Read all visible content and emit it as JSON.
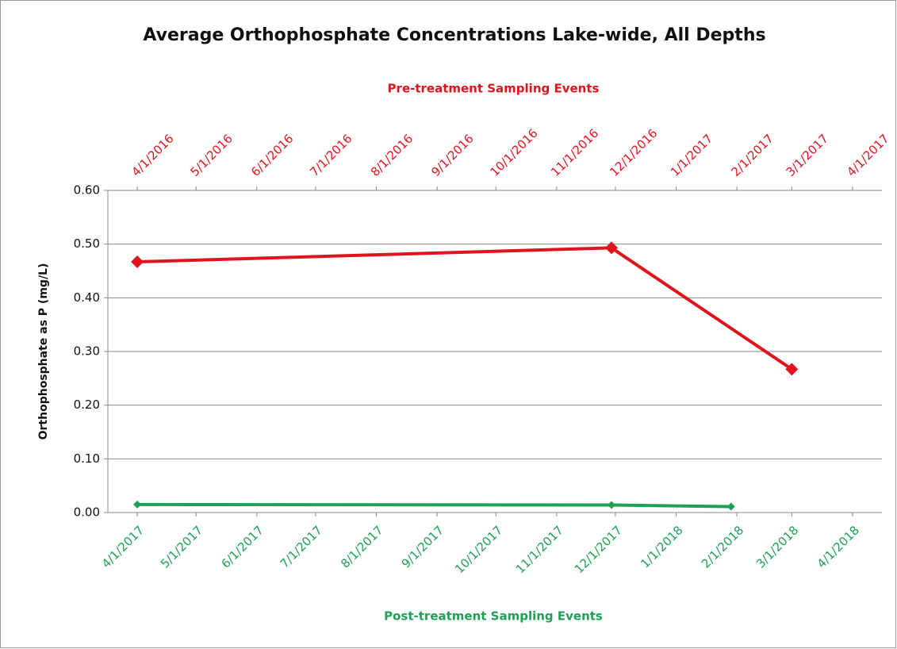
{
  "chart_data": {
    "type": "line",
    "title": "Average Orthophosphate Concentrations Lake-wide, All Depths",
    "x_label": "Pre-treatment Sampling Events",
    "x2_label": "Post-treatment Sampling Events",
    "y_label": "Orthophosphate as P (mg/L)",
    "xlim": [
      "2016-03-17",
      "2017-04-16"
    ],
    "xticks": [
      {
        "value": "2016-04-01",
        "label": "4/1/2016"
      },
      {
        "value": "2016-05-01",
        "label": "5/1/2016"
      },
      {
        "value": "2016-06-01",
        "label": "6/1/2016"
      },
      {
        "value": "2016-07-01",
        "label": "7/1/2016"
      },
      {
        "value": "2016-08-01",
        "label": "8/1/2016"
      },
      {
        "value": "2016-09-01",
        "label": "9/1/2016"
      },
      {
        "value": "2016-10-01",
        "label": "10/1/2016"
      },
      {
        "value": "2016-11-01",
        "label": "11/1/2016"
      },
      {
        "value": "2016-12-01",
        "label": "12/1/2016"
      },
      {
        "value": "2017-01-01",
        "label": "1/1/2017"
      },
      {
        "value": "2017-02-01",
        "label": "2/1/2017"
      },
      {
        "value": "2017-03-01",
        "label": "3/1/2017"
      },
      {
        "value": "2017-04-01",
        "label": "4/1/2017"
      }
    ],
    "x2lim": [
      "2017-03-17",
      "2018-04-16"
    ],
    "x2ticks": [
      {
        "value": "2017-04-01",
        "label": "4/1/2017"
      },
      {
        "value": "2017-05-01",
        "label": "5/1/2017"
      },
      {
        "value": "2017-06-01",
        "label": "6/1/2017"
      },
      {
        "value": "2017-07-01",
        "label": "7/1/2017"
      },
      {
        "value": "2017-08-01",
        "label": "8/1/2017"
      },
      {
        "value": "2017-09-01",
        "label": "9/1/2017"
      },
      {
        "value": "2017-10-01",
        "label": "10/1/2017"
      },
      {
        "value": "2017-11-01",
        "label": "11/1/2017"
      },
      {
        "value": "2017-12-01",
        "label": "12/1/2017"
      },
      {
        "value": "2018-01-01",
        "label": "1/1/2018"
      },
      {
        "value": "2018-02-01",
        "label": "2/1/2018"
      },
      {
        "value": "2018-03-01",
        "label": "3/1/2018"
      },
      {
        "value": "2018-04-01",
        "label": "4/1/2018"
      }
    ],
    "ylim": [
      0,
      0.6
    ],
    "yticks": [
      {
        "value": 0,
        "label": "0.00"
      },
      {
        "value": 0.1,
        "label": "0.10"
      },
      {
        "value": 0.2,
        "label": "0.20"
      },
      {
        "value": 0.3,
        "label": "0.30"
      },
      {
        "value": 0.4,
        "label": "0.40"
      },
      {
        "value": 0.5,
        "label": "0.50"
      },
      {
        "value": 0.6,
        "label": "0.60"
      }
    ],
    "grid": true,
    "series": [
      {
        "color": "#e0141e",
        "axis": "x",
        "x": [
          "2016-04-01",
          "2016-11-29",
          "2017-03-01"
        ],
        "values": [
          0.467,
          0.493,
          0.267
        ]
      },
      {
        "color": "#1fa055",
        "axis": "x2",
        "x": [
          "2017-04-01",
          "2017-11-29",
          "2018-01-29"
        ],
        "values": [
          0.015,
          0.014,
          0.011
        ]
      }
    ]
  }
}
